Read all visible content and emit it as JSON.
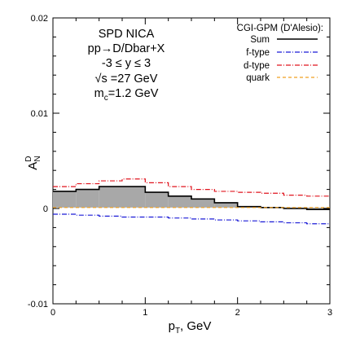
{
  "chart_data": {
    "type": "line",
    "title": "",
    "xlabel": "p",
    "xlabel_sub": "T",
    "xlabel_unit": ", GeV",
    "ylabel": "A",
    "ylabel_sup": "D",
    "ylabel_sub": "N",
    "xlim": [
      0,
      3
    ],
    "ylim": [
      -0.01,
      0.02
    ],
    "x_ticks": [
      0,
      1,
      2,
      3
    ],
    "y_ticks": [
      -0.01,
      0,
      0.01,
      0.02
    ],
    "x_tick_labels": [
      "0",
      "1",
      "2",
      "3"
    ],
    "y_tick_labels": [
      "-0.01",
      "0",
      "0.01",
      "0.02"
    ],
    "grid": false,
    "legend_position": "top-right",
    "annotations": [
      "SPD NICA",
      "pp→D/Dbar+X",
      "-3 ≤ y ≤ 3",
      "√s =27 GeV",
      "m",
      "c",
      "=1.2 GeV"
    ],
    "legend": {
      "title": "CGI-GPM (D'Alesio):",
      "entries": [
        "Sum",
        "f-type",
        "d-type",
        "quark"
      ]
    },
    "bin_edges": [
      0,
      0.25,
      0.5,
      0.75,
      1.0,
      1.25,
      1.5,
      1.75,
      2.0,
      2.25,
      2.5,
      2.75,
      3.0
    ],
    "series": [
      {
        "name": "Sum",
        "style": "histogram",
        "color": "#000000",
        "values": [
          0.0018,
          0.002,
          0.0023,
          0.0023,
          0.0017,
          0.0013,
          0.001,
          0.0006,
          0.0002,
          0.0001,
          0.0,
          -0.0001
        ]
      },
      {
        "name": "f-type",
        "style": "dash-dot",
        "color": "#1a1ad6",
        "values": [
          -0.0006,
          -0.0007,
          -0.0008,
          -0.0009,
          -0.0009,
          -0.001,
          -0.0011,
          -0.0012,
          -0.0013,
          -0.0014,
          -0.0015,
          -0.0016
        ]
      },
      {
        "name": "d-type",
        "style": "dash-dot",
        "color": "#e0141e",
        "values": [
          0.0023,
          0.0026,
          0.0029,
          0.0031,
          0.0027,
          0.0023,
          0.002,
          0.0018,
          0.0017,
          0.0016,
          0.0014,
          0.0013
        ]
      },
      {
        "name": "quark",
        "style": "dashed",
        "color": "#f0a020",
        "values": [
          0.0001,
          0.0001,
          0.0001,
          0.0001,
          0.0001,
          0.0001,
          0.0001,
          0.0001,
          0.0001,
          0.0001,
          0.0001,
          0.0001
        ]
      }
    ],
    "band": {
      "fill": "#a8a8a8",
      "lower_series": "quark",
      "upper_series": "Sum"
    }
  }
}
